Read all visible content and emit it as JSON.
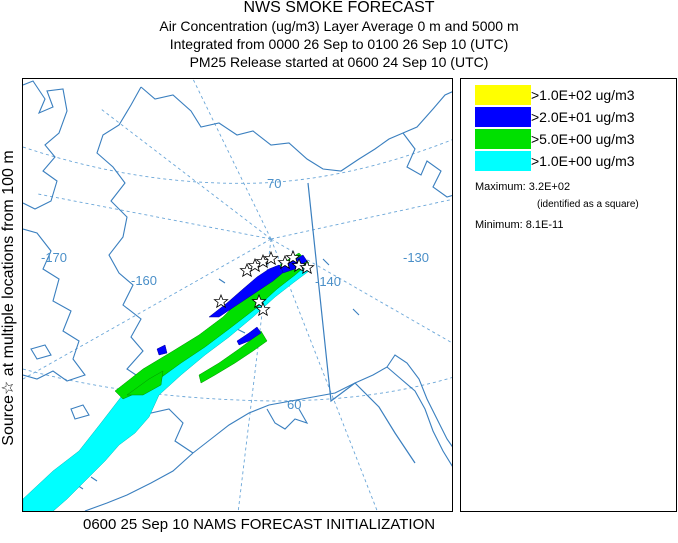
{
  "title": {
    "line1": "NWS SMOKE FORECAST",
    "line2": "Air Concentration (ug/m3) Layer Average     0 m and  5000 m",
    "line3": "Integrated from 0000 26 Sep to 0100 26 Sep 10 (UTC)",
    "line4": "PM25 Release started at 0600 24 Sep 10 (UTC)"
  },
  "side_label": "Source☆   at multiple locations   from   100 m",
  "footer": "0600 25 Sep 10 NAMS FORECAST INITIALIZATION",
  "map": {
    "longitude_labels": [
      "-170",
      "-160",
      "-140",
      "-130"
    ],
    "latitude_labels": [
      "70",
      "60"
    ],
    "colors": {
      "coastline": "#3a7fbf",
      "graticule": "#6aa6d8",
      "border": "#3a7fbf"
    }
  },
  "legend": {
    "items": [
      {
        "label": ">1.0E+02 ug/m3",
        "color": "#ffff00"
      },
      {
        "label": ">2.0E+01 ug/m3",
        "color": "#0000ff"
      },
      {
        "label": ">5.0E+00 ug/m3",
        "color": "#00e000"
      },
      {
        "label": ">1.0E+00 ug/m3",
        "color": "#00ffff"
      }
    ],
    "maximum_label": "Maximum: 3.2E+02",
    "maximum_note": "(identified as a square)",
    "minimum_label": "Minimum: 8.1E-11"
  }
}
